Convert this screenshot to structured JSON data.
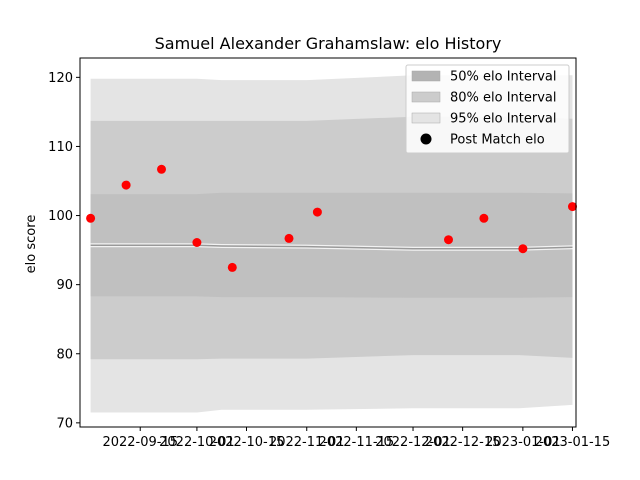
{
  "chart_data": {
    "type": "scatter",
    "title": "Samuel Alexander Grahamslaw: elo History",
    "xlabel": "",
    "ylabel": "elo score",
    "ylim": [
      69.4,
      122.8
    ],
    "xlim": [
      "2022-08-29",
      "2023-01-16"
    ],
    "yticks": [
      70,
      80,
      90,
      100,
      110,
      120
    ],
    "xticks": [
      "2022-09-15",
      "2022-10-01",
      "2022-10-15",
      "2022-11-01",
      "2022-11-15",
      "2022-12-01",
      "2022-12-15",
      "2023-01-01",
      "2023-01-15"
    ],
    "grid": false,
    "legend_position": "top-right",
    "legend": {
      "interval_50": "50% elo Interval",
      "interval_80": "80% elo Interval",
      "interval_95": "95% elo Interval",
      "post_match": "Post Match elo"
    },
    "colors": {
      "band_50": "#b3b3b3",
      "band_80": "#cccccc",
      "band_95": "#e4e4e4",
      "mean_line": "#999999",
      "points": "#ff0000"
    },
    "bands": {
      "x": [
        "2022-09-01",
        "2022-10-01",
        "2022-10-08",
        "2022-11-01",
        "2022-12-01",
        "2022-12-31",
        "2023-01-15"
      ],
      "p95_upper": [
        119.8,
        119.8,
        119.6,
        119.6,
        120.3,
        120.3,
        120.3
      ],
      "p80_upper": [
        113.7,
        113.7,
        113.7,
        113.7,
        114.3,
        114.3,
        114.0
      ],
      "p50_upper": [
        103.1,
        103.1,
        103.3,
        103.3,
        103.3,
        103.3,
        103.2
      ],
      "mean": [
        95.7,
        95.7,
        95.6,
        95.5,
        95.2,
        95.2,
        95.4
      ],
      "p50_lower": [
        88.3,
        88.3,
        88.2,
        88.2,
        88.1,
        88.1,
        88.2
      ],
      "p80_lower": [
        79.2,
        79.2,
        79.3,
        79.3,
        79.8,
        79.8,
        79.4
      ],
      "p95_lower": [
        71.5,
        71.5,
        71.9,
        71.9,
        72.1,
        72.1,
        72.6
      ]
    },
    "series": [
      {
        "name": "Post Match elo",
        "x": [
          "2022-09-01",
          "2022-09-11",
          "2022-09-21",
          "2022-10-01",
          "2022-10-11",
          "2022-10-27",
          "2022-11-04",
          "2022-12-11",
          "2022-12-21",
          "2023-01-01",
          "2023-01-15"
        ],
        "y": [
          99.6,
          104.4,
          106.7,
          96.1,
          92.5,
          96.7,
          100.5,
          96.5,
          99.6,
          95.2,
          101.3
        ]
      }
    ]
  }
}
